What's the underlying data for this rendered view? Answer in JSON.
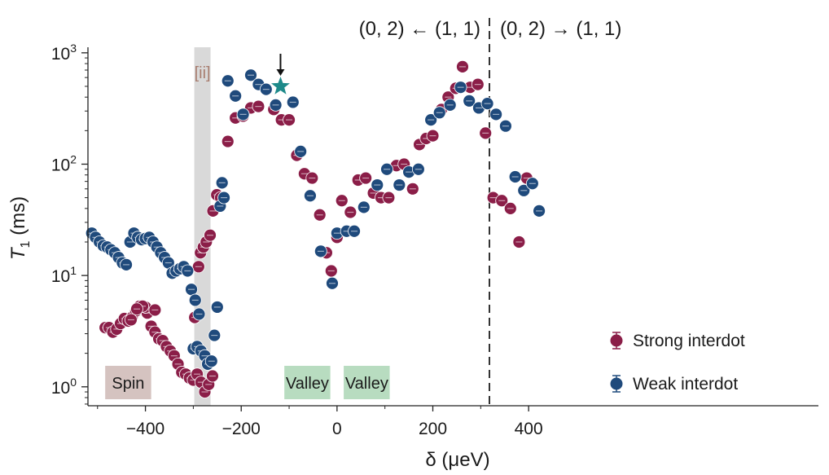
{
  "chart_data": {
    "type": "scatter",
    "xlabel": "δ (μeV)",
    "ylabel_main": "T",
    "ylabel_sub": "1",
    "ylabel_unit": " (ms)",
    "xlim": [
      -520,
      1005
    ],
    "ylog_lim": [
      -0.17,
      3.05
    ],
    "x_ticks": [
      -400,
      -200,
      0,
      200,
      400
    ],
    "x_tick_labels": [
      "−400",
      "−200",
      "0",
      "200",
      "400"
    ],
    "y_tick_labels": [
      {
        "base": "10",
        "exp": "0"
      },
      {
        "base": "10",
        "exp": "1"
      },
      {
        "base": "10",
        "exp": "2"
      },
      {
        "base": "10",
        "exp": "3"
      }
    ],
    "divider_x": 0,
    "top_labels": {
      "left": "(0, 2) ← (1, 1)",
      "right": "(0, 2) → (1, 1)"
    },
    "shaded_band": {
      "x_from": -298,
      "x_to": -264,
      "label": "[ii]",
      "color": "#d9d9d9",
      "label_color": "#a87d6f"
    },
    "regions": [
      {
        "label": "Spin",
        "x_from": -484,
        "x_to": -388,
        "color": "#d5c3c0"
      },
      {
        "label": "Valley",
        "x_from": -110,
        "x_to": -14,
        "color": "#b8dcc0"
      },
      {
        "label": "Valley",
        "x_from": 14,
        "x_to": 110,
        "color": "#b8dcc0"
      }
    ],
    "legend": {
      "position": "bottom-right"
    },
    "star": {
      "x": -118,
      "y": 500,
      "color": "#1e8a8a"
    },
    "series": [
      {
        "name": "Strong interdot",
        "color": "#8b1e48",
        "points": [
          [
            -484,
            3.4
          ],
          [
            -476,
            3.4
          ],
          [
            -468,
            3.1
          ],
          [
            -460,
            3.3
          ],
          [
            -452,
            3.7
          ],
          [
            -444,
            4.1
          ],
          [
            -436,
            3.9
          ],
          [
            -428,
            4.2
          ],
          [
            -420,
            4.8
          ],
          [
            -412,
            5.3
          ],
          [
            -404,
            5.2
          ],
          [
            -396,
            4.6
          ],
          [
            -388,
            3.5
          ],
          [
            -380,
            3.1
          ],
          [
            -372,
            2.7
          ],
          [
            -364,
            2.6
          ],
          [
            -356,
            2.3
          ],
          [
            -348,
            2.1
          ],
          [
            -340,
            1.9
          ],
          [
            -332,
            1.6
          ],
          [
            -324,
            1.35
          ],
          [
            -316,
            1.3
          ],
          [
            -308,
            1.2
          ],
          [
            -300,
            1.15
          ],
          [
            -292,
            1.3
          ],
          [
            -284,
            1.1
          ],
          [
            -276,
            0.9
          ],
          [
            -268,
            1.05
          ],
          [
            -260,
            1.25
          ],
          [
            -400,
            5.2
          ],
          [
            -406,
            5.3
          ],
          [
            -418,
            5.0
          ],
          [
            -430,
            4.0
          ],
          [
            -380,
            4.9
          ],
          [
            -297,
            4.2
          ],
          [
            -289,
            12
          ],
          [
            -285,
            16
          ],
          [
            -279,
            18
          ],
          [
            -273,
            20
          ],
          [
            -265,
            23
          ],
          [
            -259,
            38
          ],
          [
            -251,
            53
          ],
          [
            -243,
            50
          ],
          [
            -228,
            160
          ],
          [
            -212,
            260
          ],
          [
            -196,
            270
          ],
          [
            -180,
            320
          ],
          [
            -164,
            330
          ],
          [
            -148,
            470
          ],
          [
            -132,
            310
          ],
          [
            -116,
            250
          ],
          [
            -100,
            250
          ],
          [
            -84,
            120
          ],
          [
            -68,
            82
          ],
          [
            -52,
            75
          ],
          [
            -36,
            35
          ],
          [
            -22,
            16
          ],
          [
            -12,
            11
          ],
          [
            0,
            22
          ],
          [
            10,
            47
          ],
          [
            28,
            37
          ],
          [
            44,
            72
          ],
          [
            60,
            75
          ],
          [
            76,
            55
          ],
          [
            92,
            50
          ],
          [
            108,
            50
          ],
          [
            124,
            97
          ],
          [
            140,
            100
          ],
          [
            158,
            60
          ],
          [
            172,
            150
          ],
          [
            186,
            170
          ],
          [
            200,
            180
          ],
          [
            218,
            310
          ],
          [
            232,
            400
          ],
          [
            248,
            480
          ],
          [
            262,
            750
          ],
          [
            278,
            490
          ],
          [
            294,
            520
          ],
          [
            310,
            190
          ],
          [
            326,
            50
          ],
          [
            344,
            47
          ],
          [
            362,
            40
          ],
          [
            380,
            20
          ],
          [
            396,
            75
          ]
        ]
      },
      {
        "name": "Weak interdot",
        "color": "#1f4a7c",
        "points": [
          [
            -512,
            24
          ],
          [
            -504,
            22
          ],
          [
            -496,
            20
          ],
          [
            -488,
            18.5
          ],
          [
            -480,
            18
          ],
          [
            -472,
            17
          ],
          [
            -464,
            16
          ],
          [
            -456,
            14.5
          ],
          [
            -448,
            13
          ],
          [
            -440,
            12.5
          ],
          [
            -432,
            20
          ],
          [
            -424,
            24
          ],
          [
            -416,
            22
          ],
          [
            -408,
            21
          ],
          [
            -400,
            21.5
          ],
          [
            -392,
            22
          ],
          [
            -384,
            20
          ],
          [
            -376,
            18
          ],
          [
            -368,
            16
          ],
          [
            -360,
            14.5
          ],
          [
            -352,
            13
          ],
          [
            -344,
            10.5
          ],
          [
            -336,
            11
          ],
          [
            -328,
            11.5
          ],
          [
            -320,
            12
          ],
          [
            -312,
            11
          ],
          [
            -304,
            7.5
          ],
          [
            -296,
            6
          ],
          [
            -288,
            4.5
          ],
          [
            -300,
            2.2
          ],
          [
            -292,
            2.3
          ],
          [
            -284,
            2.1
          ],
          [
            -276,
            1.9
          ],
          [
            -270,
            1.6
          ],
          [
            -262,
            1.7
          ],
          [
            -256,
            2.9
          ],
          [
            -250,
            5.2
          ],
          [
            -244,
            42
          ],
          [
            -240,
            68
          ],
          [
            -236,
            50
          ],
          [
            -228,
            560
          ],
          [
            -212,
            410
          ],
          [
            -196,
            280
          ],
          [
            -180,
            630
          ],
          [
            -164,
            520
          ],
          [
            -148,
            470
          ],
          [
            -128,
            340
          ],
          [
            -92,
            360
          ],
          [
            -76,
            130
          ],
          [
            -56,
            52
          ],
          [
            -34,
            16.5
          ],
          [
            -10,
            8.5
          ],
          [
            0,
            24
          ],
          [
            20,
            25
          ],
          [
            36,
            25
          ],
          [
            56,
            41
          ],
          [
            84,
            65
          ],
          [
            104,
            90
          ],
          [
            130,
            65
          ],
          [
            150,
            85
          ],
          [
            170,
            90
          ],
          [
            196,
            250
          ],
          [
            214,
            290
          ],
          [
            236,
            340
          ],
          [
            258,
            490
          ],
          [
            276,
            370
          ],
          [
            296,
            320
          ],
          [
            314,
            350
          ],
          [
            332,
            280
          ],
          [
            352,
            220
          ],
          [
            372,
            77
          ],
          [
            390,
            58
          ],
          [
            408,
            67
          ],
          [
            422,
            38
          ]
        ]
      }
    ]
  }
}
